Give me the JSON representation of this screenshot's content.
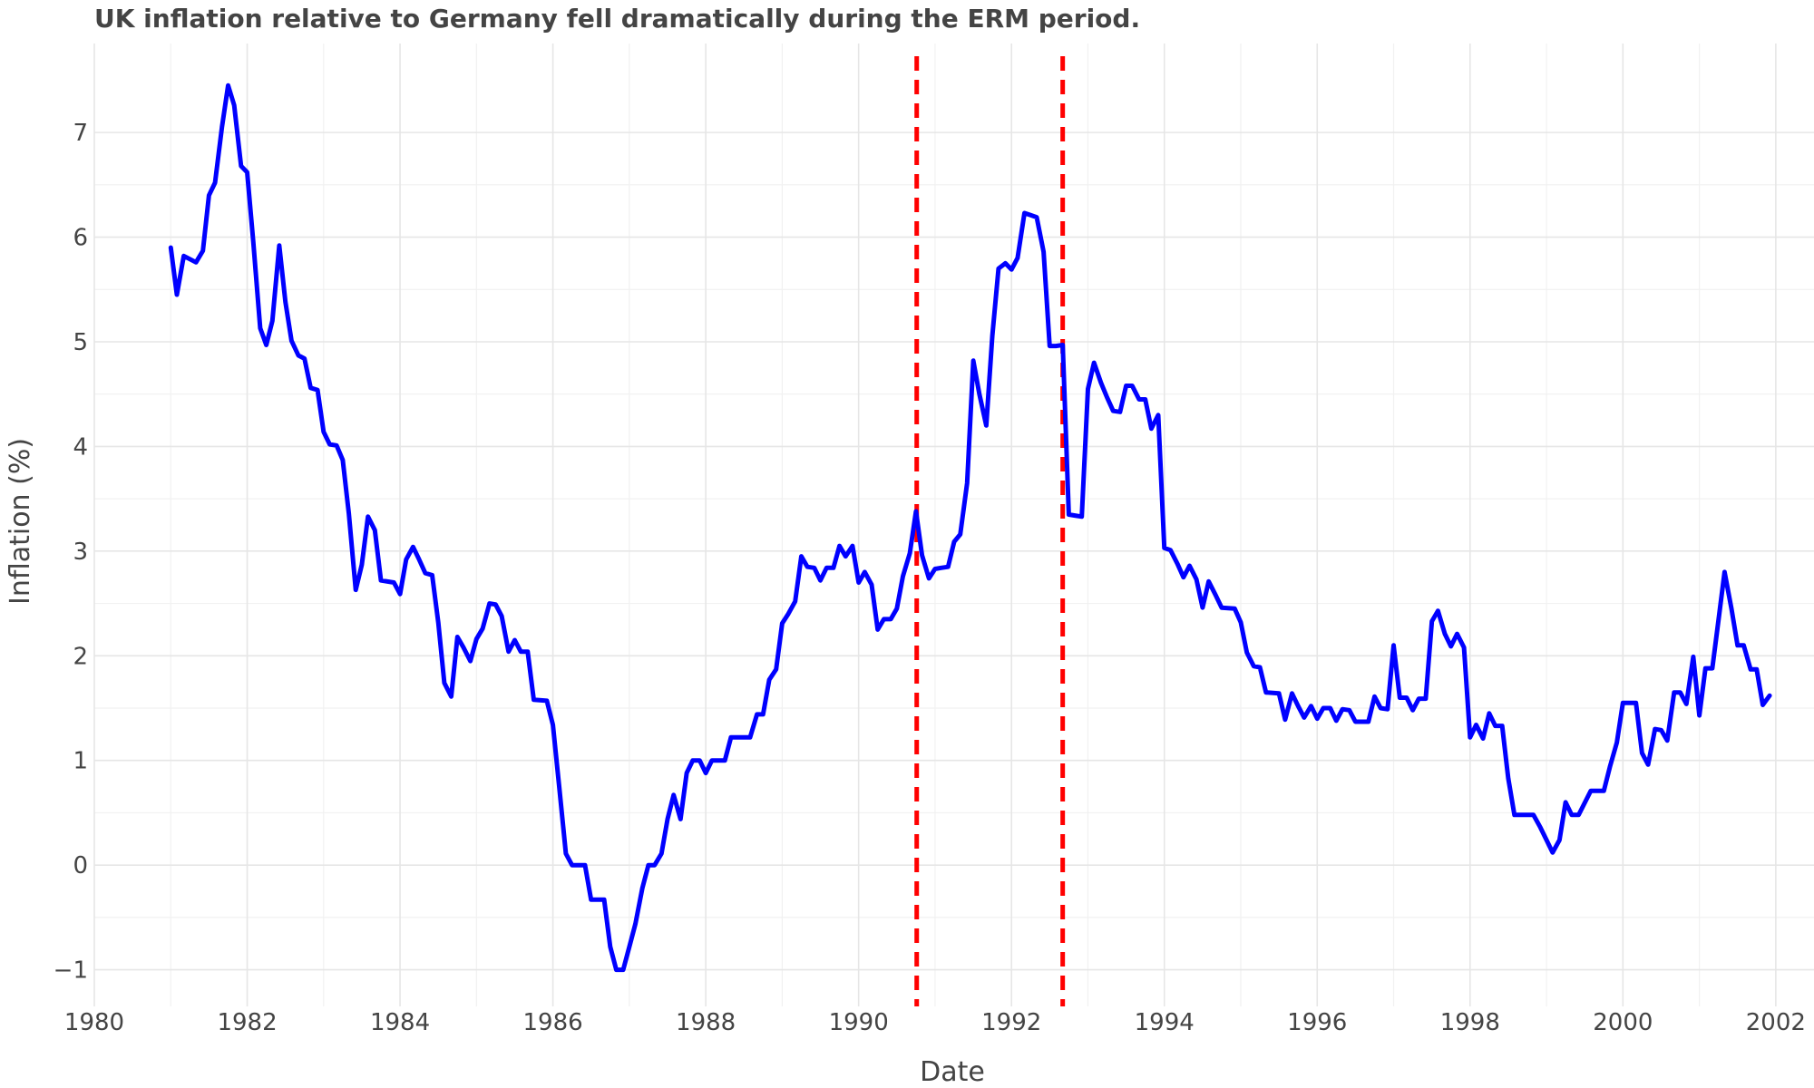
{
  "chart_data": {
    "type": "line",
    "title": "UK inflation relative to Germany fell dramatically during the ERM period.",
    "xlabel": "Date",
    "ylabel": "Inflation (%)",
    "xlim": [
      1980,
      2002.5
    ],
    "ylim": [
      -1.35,
      7.85
    ],
    "x_ticks": [
      1980,
      1982,
      1984,
      1986,
      1988,
      1990,
      1992,
      1994,
      1996,
      1998,
      2000,
      2002
    ],
    "x_tick_labels": [
      "1980",
      "1982",
      "1984",
      "1986",
      "1988",
      "1990",
      "1992",
      "1994",
      "1996",
      "1998",
      "2000",
      "2002"
    ],
    "y_ticks": [
      -1,
      0,
      1,
      2,
      3,
      4,
      5,
      6,
      7
    ],
    "y_tick_labels": [
      "−1",
      "0",
      "1",
      "2",
      "3",
      "4",
      "5",
      "6",
      "7"
    ],
    "grid": true,
    "series": [
      {
        "color": "#0000ff",
        "points": [
          [
            1981.0,
            5.9
          ],
          [
            1981.08,
            5.45
          ],
          [
            1981.17,
            5.82
          ],
          [
            1981.33,
            5.76
          ],
          [
            1981.42,
            5.87
          ],
          [
            1981.5,
            6.4
          ],
          [
            1981.58,
            6.52
          ],
          [
            1981.67,
            7.05
          ],
          [
            1981.75,
            7.45
          ],
          [
            1981.83,
            7.26
          ],
          [
            1981.92,
            6.68
          ],
          [
            1982.0,
            6.62
          ],
          [
            1982.08,
            5.95
          ],
          [
            1982.17,
            5.13
          ],
          [
            1982.25,
            4.97
          ],
          [
            1982.33,
            5.2
          ],
          [
            1982.42,
            5.92
          ],
          [
            1982.5,
            5.38
          ],
          [
            1982.58,
            5.01
          ],
          [
            1982.67,
            4.87
          ],
          [
            1982.75,
            4.84
          ],
          [
            1982.83,
            4.56
          ],
          [
            1982.92,
            4.54
          ],
          [
            1983.0,
            4.14
          ],
          [
            1983.08,
            4.02
          ],
          [
            1983.17,
            4.01
          ],
          [
            1983.25,
            3.87
          ],
          [
            1983.33,
            3.36
          ],
          [
            1983.42,
            2.63
          ],
          [
            1983.5,
            2.87
          ],
          [
            1983.58,
            3.33
          ],
          [
            1983.67,
            3.2
          ],
          [
            1983.75,
            2.72
          ],
          [
            1983.92,
            2.7
          ],
          [
            1984.0,
            2.59
          ],
          [
            1984.08,
            2.92
          ],
          [
            1984.17,
            3.04
          ],
          [
            1984.25,
            2.92
          ],
          [
            1984.33,
            2.79
          ],
          [
            1984.42,
            2.77
          ],
          [
            1984.5,
            2.32
          ],
          [
            1984.58,
            1.74
          ],
          [
            1984.67,
            1.61
          ],
          [
            1984.75,
            2.18
          ],
          [
            1984.83,
            2.08
          ],
          [
            1984.92,
            1.95
          ],
          [
            1985.0,
            2.16
          ],
          [
            1985.08,
            2.26
          ],
          [
            1985.17,
            2.5
          ],
          [
            1985.25,
            2.49
          ],
          [
            1985.33,
            2.38
          ],
          [
            1985.42,
            2.04
          ],
          [
            1985.5,
            2.15
          ],
          [
            1985.58,
            2.04
          ],
          [
            1985.67,
            2.04
          ],
          [
            1985.75,
            1.58
          ],
          [
            1985.92,
            1.57
          ],
          [
            1986.0,
            1.34
          ],
          [
            1986.08,
            0.77
          ],
          [
            1986.17,
            0.11
          ],
          [
            1986.25,
            0.0
          ],
          [
            1986.42,
            0.0
          ],
          [
            1986.5,
            -0.33
          ],
          [
            1986.67,
            -0.33
          ],
          [
            1986.75,
            -0.78
          ],
          [
            1986.83,
            -1.0
          ],
          [
            1986.92,
            -1.0
          ],
          [
            1987.0,
            -0.78
          ],
          [
            1987.08,
            -0.56
          ],
          [
            1987.17,
            -0.22
          ],
          [
            1987.25,
            0.0
          ],
          [
            1987.33,
            0.0
          ],
          [
            1987.42,
            0.11
          ],
          [
            1987.5,
            0.44
          ],
          [
            1987.58,
            0.67
          ],
          [
            1987.67,
            0.44
          ],
          [
            1987.75,
            0.88
          ],
          [
            1987.83,
            1.0
          ],
          [
            1987.92,
            1.0
          ],
          [
            1988.0,
            0.88
          ],
          [
            1988.08,
            1.0
          ],
          [
            1988.25,
            1.0
          ],
          [
            1988.33,
            1.22
          ],
          [
            1988.58,
            1.22
          ],
          [
            1988.67,
            1.44
          ],
          [
            1988.75,
            1.44
          ],
          [
            1988.83,
            1.77
          ],
          [
            1988.92,
            1.87
          ],
          [
            1989.0,
            2.31
          ],
          [
            1989.08,
            2.4
          ],
          [
            1989.17,
            2.52
          ],
          [
            1989.25,
            2.95
          ],
          [
            1989.33,
            2.85
          ],
          [
            1989.42,
            2.84
          ],
          [
            1989.5,
            2.72
          ],
          [
            1989.58,
            2.84
          ],
          [
            1989.67,
            2.84
          ],
          [
            1989.75,
            3.05
          ],
          [
            1989.83,
            2.95
          ],
          [
            1989.92,
            3.05
          ],
          [
            1990.0,
            2.7
          ],
          [
            1990.08,
            2.8
          ],
          [
            1990.17,
            2.68
          ],
          [
            1990.25,
            2.25
          ],
          [
            1990.33,
            2.35
          ],
          [
            1990.42,
            2.35
          ],
          [
            1990.5,
            2.45
          ],
          [
            1990.58,
            2.76
          ],
          [
            1990.67,
            2.98
          ],
          [
            1990.75,
            3.38
          ],
          [
            1990.83,
            2.96
          ],
          [
            1990.92,
            2.74
          ],
          [
            1991.0,
            2.83
          ],
          [
            1991.08,
            2.84
          ],
          [
            1991.17,
            2.85
          ],
          [
            1991.25,
            3.09
          ],
          [
            1991.33,
            3.16
          ],
          [
            1991.42,
            3.65
          ],
          [
            1991.5,
            4.82
          ],
          [
            1991.58,
            4.5
          ],
          [
            1991.67,
            4.2
          ],
          [
            1991.75,
            5.06
          ],
          [
            1991.83,
            5.7
          ],
          [
            1991.92,
            5.75
          ],
          [
            1992.0,
            5.69
          ],
          [
            1992.08,
            5.8
          ],
          [
            1992.17,
            6.23
          ],
          [
            1992.25,
            6.21
          ],
          [
            1992.33,
            6.19
          ],
          [
            1992.42,
            5.86
          ],
          [
            1992.5,
            4.96
          ],
          [
            1992.58,
            4.96
          ],
          [
            1992.67,
            4.97
          ],
          [
            1992.75,
            3.35
          ],
          [
            1992.83,
            3.34
          ],
          [
            1992.92,
            3.33
          ],
          [
            1993.0,
            4.55
          ],
          [
            1993.08,
            4.8
          ],
          [
            1993.17,
            4.61
          ],
          [
            1993.25,
            4.47
          ],
          [
            1993.33,
            4.34
          ],
          [
            1993.42,
            4.33
          ],
          [
            1993.5,
            4.58
          ],
          [
            1993.58,
            4.58
          ],
          [
            1993.67,
            4.45
          ],
          [
            1993.75,
            4.45
          ],
          [
            1993.83,
            4.17
          ],
          [
            1993.92,
            4.3
          ],
          [
            1994.0,
            3.03
          ],
          [
            1994.08,
            3.01
          ],
          [
            1994.17,
            2.88
          ],
          [
            1994.25,
            2.75
          ],
          [
            1994.33,
            2.86
          ],
          [
            1994.42,
            2.73
          ],
          [
            1994.5,
            2.46
          ],
          [
            1994.58,
            2.71
          ],
          [
            1994.67,
            2.58
          ],
          [
            1994.75,
            2.46
          ],
          [
            1994.92,
            2.45
          ],
          [
            1995.0,
            2.32
          ],
          [
            1995.08,
            2.03
          ],
          [
            1995.17,
            1.9
          ],
          [
            1995.25,
            1.89
          ],
          [
            1995.33,
            1.65
          ],
          [
            1995.5,
            1.64
          ],
          [
            1995.58,
            1.39
          ],
          [
            1995.67,
            1.64
          ],
          [
            1995.75,
            1.52
          ],
          [
            1995.83,
            1.41
          ],
          [
            1995.92,
            1.52
          ],
          [
            1996.0,
            1.4
          ],
          [
            1996.08,
            1.5
          ],
          [
            1996.17,
            1.5
          ],
          [
            1996.25,
            1.38
          ],
          [
            1996.33,
            1.49
          ],
          [
            1996.42,
            1.48
          ],
          [
            1996.5,
            1.37
          ],
          [
            1996.67,
            1.37
          ],
          [
            1996.75,
            1.61
          ],
          [
            1996.83,
            1.5
          ],
          [
            1996.92,
            1.49
          ],
          [
            1997.0,
            2.1
          ],
          [
            1997.08,
            1.6
          ],
          [
            1997.17,
            1.6
          ],
          [
            1997.25,
            1.48
          ],
          [
            1997.33,
            1.59
          ],
          [
            1997.42,
            1.59
          ],
          [
            1997.5,
            2.33
          ],
          [
            1997.58,
            2.43
          ],
          [
            1997.67,
            2.21
          ],
          [
            1997.75,
            2.09
          ],
          [
            1997.83,
            2.21
          ],
          [
            1997.92,
            2.08
          ],
          [
            1998.0,
            1.22
          ],
          [
            1998.08,
            1.34
          ],
          [
            1998.17,
            1.21
          ],
          [
            1998.25,
            1.45
          ],
          [
            1998.33,
            1.33
          ],
          [
            1998.42,
            1.33
          ],
          [
            1998.5,
            0.83
          ],
          [
            1998.58,
            0.48
          ],
          [
            1998.83,
            0.48
          ],
          [
            1998.92,
            0.36
          ],
          [
            1999.0,
            0.24
          ],
          [
            1999.08,
            0.12
          ],
          [
            1999.17,
            0.24
          ],
          [
            1999.25,
            0.6
          ],
          [
            1999.33,
            0.48
          ],
          [
            1999.42,
            0.48
          ],
          [
            1999.58,
            0.71
          ],
          [
            1999.75,
            0.71
          ],
          [
            1999.83,
            0.94
          ],
          [
            1999.92,
            1.17
          ],
          [
            2000.0,
            1.55
          ],
          [
            2000.17,
            1.55
          ],
          [
            2000.25,
            1.07
          ],
          [
            2000.33,
            0.96
          ],
          [
            2000.42,
            1.3
          ],
          [
            2000.5,
            1.29
          ],
          [
            2000.58,
            1.19
          ],
          [
            2000.67,
            1.65
          ],
          [
            2000.75,
            1.65
          ],
          [
            2000.83,
            1.54
          ],
          [
            2000.92,
            1.99
          ],
          [
            2001.0,
            1.43
          ],
          [
            2001.08,
            1.88
          ],
          [
            2001.17,
            1.88
          ],
          [
            2001.25,
            2.34
          ],
          [
            2001.33,
            2.8
          ],
          [
            2001.42,
            2.45
          ],
          [
            2001.5,
            2.1
          ],
          [
            2001.58,
            2.1
          ],
          [
            2001.67,
            1.87
          ],
          [
            2001.75,
            1.87
          ],
          [
            2001.83,
            1.53
          ],
          [
            2001.92,
            1.62
          ]
        ]
      }
    ],
    "vlines": [
      {
        "x": 1990.76,
        "color": "#ff0000",
        "style": "dashed"
      },
      {
        "x": 1992.67,
        "color": "#ff0000",
        "style": "dashed"
      }
    ]
  }
}
